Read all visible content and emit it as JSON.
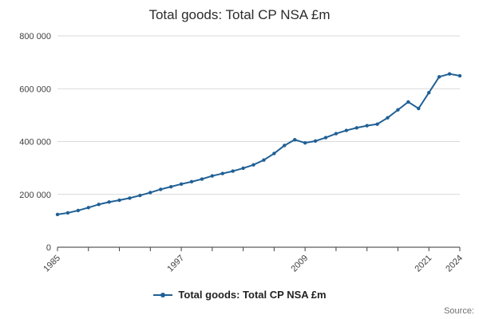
{
  "page": {
    "title": "Total goods: Total CP NSA £m",
    "source_label": "Source:"
  },
  "legend": {
    "items": [
      {
        "label": "Total goods: Total CP NSA £m",
        "color": "#206095"
      }
    ]
  },
  "colors": {
    "line": "#206095",
    "grid": "#d9d9d9",
    "axis": "#333333",
    "tick_text": "#414042",
    "title_text": "#2b2b2b",
    "source_text": "#707070"
  },
  "chart_data": {
    "type": "line",
    "title": "Total goods: Total CP NSA £m",
    "xlabel": "",
    "ylabel": "",
    "xlim": [
      1985,
      2024
    ],
    "ylim": [
      0,
      800000
    ],
    "grid": "horizontal",
    "legend_position": "bottom",
    "marker": "point",
    "x": [
      1985,
      1986,
      1987,
      1988,
      1989,
      1990,
      1991,
      1992,
      1993,
      1994,
      1995,
      1996,
      1997,
      1998,
      1999,
      2000,
      2001,
      2002,
      2003,
      2004,
      2005,
      2006,
      2007,
      2008,
      2009,
      2010,
      2011,
      2012,
      2013,
      2014,
      2015,
      2016,
      2017,
      2018,
      2019,
      2020,
      2021,
      2022,
      2023,
      2024
    ],
    "series": [
      {
        "name": "Total goods: Total CP NSA £m",
        "color": "#206095",
        "values": [
          124000,
          130000,
          139000,
          150000,
          162000,
          171000,
          178000,
          186000,
          196000,
          207000,
          219000,
          229000,
          239000,
          248000,
          258000,
          270000,
          279000,
          288000,
          299000,
          312000,
          330000,
          355000,
          385000,
          407000,
          395000,
          402000,
          415000,
          430000,
          442000,
          452000,
          460000,
          466000,
          490000,
          520000,
          550000,
          525000,
          585000,
          645000,
          656000,
          649000
        ]
      }
    ],
    "y_ticks": [
      0,
      200000,
      400000,
      600000,
      800000
    ],
    "y_tick_labels": [
      "0",
      "200 000",
      "400 000",
      "600 000",
      "800 000"
    ],
    "x_ticks": [
      1985,
      1988,
      1991,
      1994,
      1997,
      2000,
      2003,
      2006,
      2009,
      2012,
      2015,
      2018,
      2021,
      2024
    ],
    "x_tick_labels": [
      "1985",
      "",
      "",
      "",
      "1997",
      "",
      "",
      "",
      "2009",
      "",
      "",
      "",
      "2021",
      "2024"
    ]
  }
}
